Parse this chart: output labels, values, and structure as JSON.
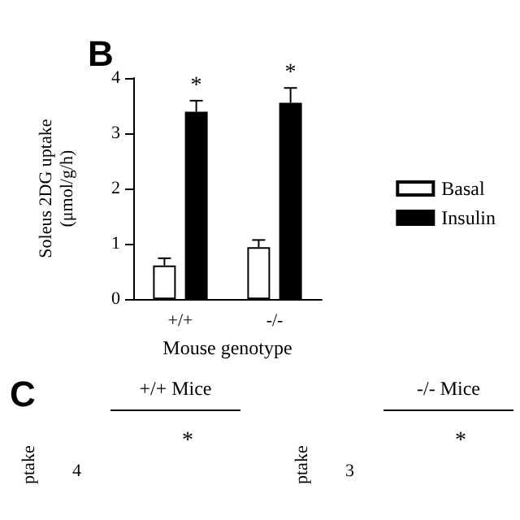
{
  "chart_data": [
    {
      "type": "bar",
      "categories": [
        "+/+",
        "-/-"
      ],
      "xlabel": "Mouse genotype",
      "ylabel": "Soleus 2DG uptake\n(μmol/g/h)",
      "ylim": [
        0,
        4
      ],
      "yticks": [
        0,
        1,
        2,
        3,
        4
      ],
      "legend": "right",
      "grid": false,
      "series": [
        {
          "name": "Basal",
          "color": "#ffffff",
          "values": [
            0.61,
            0.94
          ],
          "errors": [
            [
              0.61,
              0.74
            ],
            [
              0.94,
              1.07
            ]
          ]
        },
        {
          "name": "Insulin",
          "color": "#000000",
          "values": [
            3.39,
            3.55
          ],
          "errors": [
            [
              3.39,
              3.59
            ],
            [
              3.55,
              3.82
            ]
          ]
        }
      ],
      "annotations": [
        "B",
        "*",
        "*"
      ]
    },
    {
      "type": "other",
      "title": "+/+ Mice",
      "ylabel": "ptake",
      "annotations": [
        "C",
        "*",
        "4"
      ]
    },
    {
      "type": "other",
      "title": "-/- Mice",
      "ylabel": "ptake",
      "annotations": [
        "*",
        "3"
      ]
    }
  ]
}
